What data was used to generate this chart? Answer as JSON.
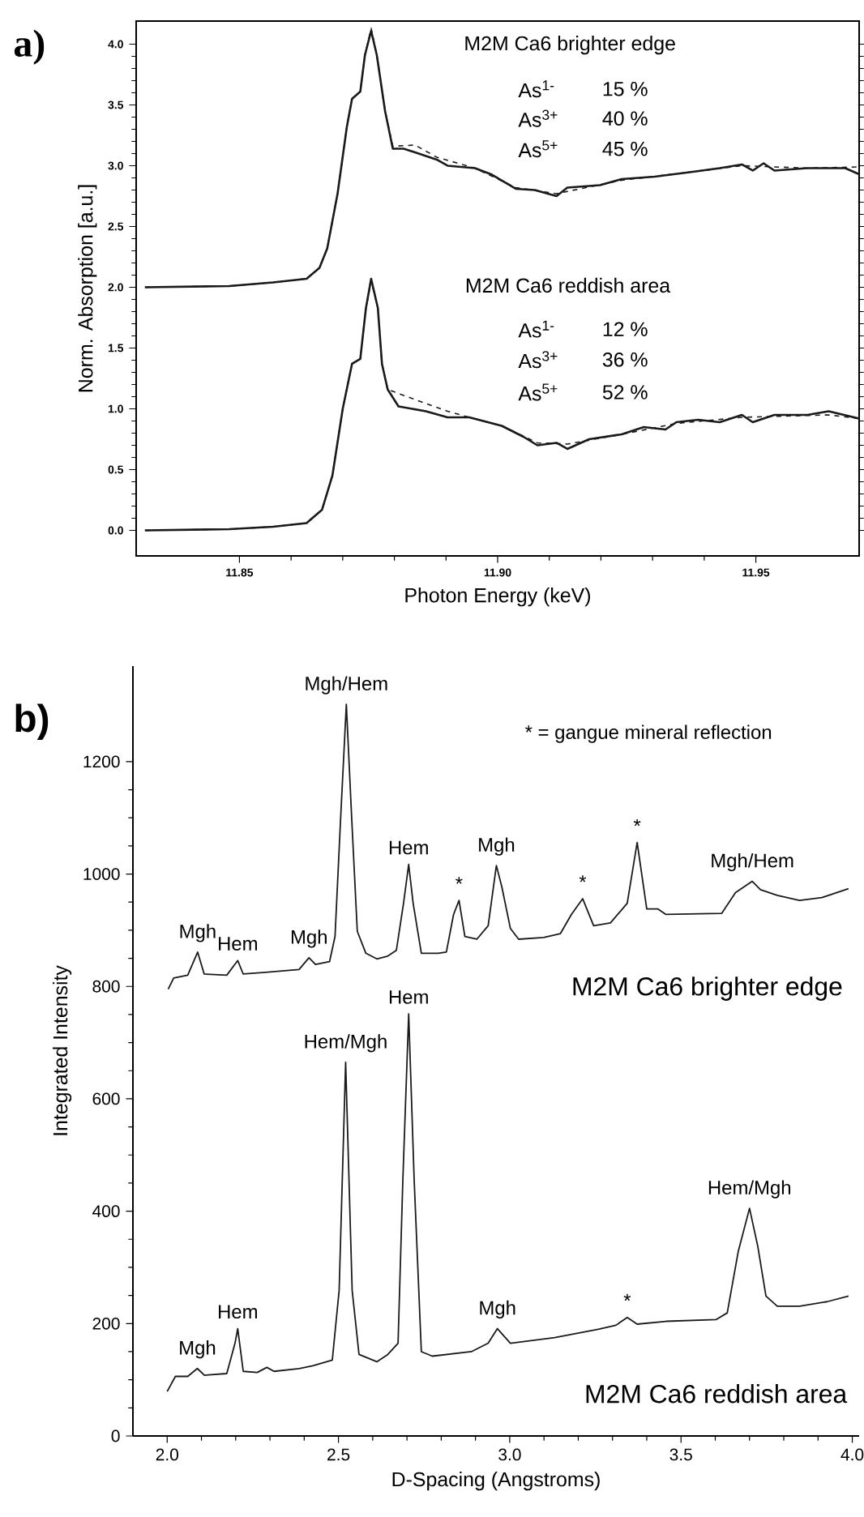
{
  "chart_data": [
    {
      "type": "line",
      "title": "a)",
      "xlabel": "Photon Energy (keV)",
      "ylabel": "Norm. Absorption [a.u.]",
      "xlim": [
        11.83,
        11.97
      ],
      "ylim": [
        -0.21,
        4.19
      ],
      "xticks": [
        {
          "value": 11.85,
          "label": "11.85"
        },
        {
          "value": 11.9,
          "label": "11.90"
        },
        {
          "value": 11.95,
          "label": "11.95"
        }
      ],
      "yticks": [
        {
          "value": 0,
          "label": "0.0"
        },
        {
          "value": 0.5,
          "label": "0.5"
        },
        {
          "value": 1,
          "label": "1.0"
        },
        {
          "value": 1.5,
          "label": "1.5"
        },
        {
          "value": 2,
          "label": "2.0"
        },
        {
          "value": 2.5,
          "label": "2.5"
        },
        {
          "value": 3,
          "label": "3.0"
        },
        {
          "value": 3.5,
          "label": "3.5"
        },
        {
          "value": 4,
          "label": "4.0"
        }
      ],
      "series": [
        {
          "color": "#1a1a1a",
          "line_style": "solid",
          "x": [
            11.8317,
            11.848,
            11.8565,
            11.863,
            11.8655,
            11.867,
            11.869,
            11.8708,
            11.8718,
            11.8734,
            11.8743,
            11.8755,
            11.8766,
            11.8782,
            11.8797,
            11.8818,
            11.884,
            11.8882,
            11.8903,
            11.8956,
            11.8987,
            11.9035,
            11.9072,
            11.9114,
            11.9135,
            11.9198,
            11.924,
            11.9304,
            11.9378,
            11.943,
            11.9473,
            11.9494,
            11.9515,
            11.9536,
            11.9599,
            11.9673,
            11.97
          ],
          "values": [
            2.0,
            2.01,
            2.04,
            2.07,
            2.16,
            2.32,
            2.77,
            3.32,
            3.55,
            3.61,
            3.91,
            4.11,
            3.91,
            3.45,
            3.14,
            3.14,
            3.11,
            3.05,
            3.0,
            2.98,
            2.93,
            2.81,
            2.8,
            2.75,
            2.82,
            2.84,
            2.89,
            2.91,
            2.95,
            2.98,
            3.01,
            2.96,
            3.02,
            2.96,
            2.98,
            2.98,
            2.93
          ]
        },
        {
          "color": "#1a1a1a",
          "line_style": "dashed",
          "x": [
            11.8317,
            11.848,
            11.8565,
            11.863,
            11.8655,
            11.867,
            11.869,
            11.8708,
            11.8718,
            11.8734,
            11.8743,
            11.8755,
            11.8766,
            11.8782,
            11.8797,
            11.884,
            11.8882,
            11.8956,
            11.9035,
            11.9114,
            11.924,
            11.9378,
            11.9473,
            11.9599,
            11.97
          ],
          "values": [
            2.0,
            2.01,
            2.04,
            2.07,
            2.16,
            2.32,
            2.77,
            3.32,
            3.55,
            3.61,
            3.91,
            4.13,
            3.91,
            3.45,
            3.16,
            3.17,
            3.07,
            2.98,
            2.82,
            2.77,
            2.88,
            2.95,
            3.0,
            2.98,
            2.99
          ]
        },
        {
          "color": "#1a1a1a",
          "line_style": "solid",
          "x": [
            11.8317,
            11.848,
            11.8565,
            11.863,
            11.866,
            11.868,
            11.87,
            11.8718,
            11.8734,
            11.8745,
            11.8755,
            11.8768,
            11.8776,
            11.8787,
            11.8808,
            11.8861,
            11.8903,
            11.8945,
            11.9008,
            11.905,
            11.9077,
            11.9114,
            11.9135,
            11.9177,
            11.924,
            11.9283,
            11.9325,
            11.9346,
            11.9388,
            11.943,
            11.9473,
            11.9494,
            11.9536,
            11.96,
            11.9641,
            11.97
          ],
          "values": [
            0,
            0.01,
            0.03,
            0.06,
            0.17,
            0.45,
            1.0,
            1.37,
            1.41,
            1.83,
            2.07,
            1.83,
            1.37,
            1.16,
            1.02,
            0.98,
            0.93,
            0.93,
            0.86,
            0.77,
            0.7,
            0.72,
            0.67,
            0.75,
            0.79,
            0.85,
            0.83,
            0.89,
            0.91,
            0.89,
            0.95,
            0.89,
            0.95,
            0.95,
            0.98,
            0.92
          ]
        },
        {
          "color": "#1a1a1a",
          "line_style": "dashed",
          "x": [
            11.8317,
            11.848,
            11.8565,
            11.863,
            11.866,
            11.868,
            11.87,
            11.8718,
            11.8734,
            11.8745,
            11.8755,
            11.8768,
            11.8776,
            11.8787,
            11.8818,
            11.8903,
            11.8945,
            11.9008,
            11.9077,
            11.9135,
            11.924,
            11.9346,
            11.9473,
            11.9641,
            11.97
          ],
          "values": [
            0,
            0.01,
            0.03,
            0.06,
            0.17,
            0.45,
            1.0,
            1.37,
            1.41,
            1.83,
            2.05,
            1.83,
            1.37,
            1.16,
            1.11,
            0.98,
            0.93,
            0.86,
            0.72,
            0.71,
            0.79,
            0.88,
            0.93,
            0.95,
            0.92
          ]
        }
      ],
      "annotations": [
        "M2M Ca6 brighter edge",
        "As$^{1-}$",
        "15 %",
        "As$^{3+}$",
        "40 %",
        "As$^{5+}$",
        "45 %",
        "M2M Ca6 reddish area",
        "As$^{1-}$",
        "12 %",
        "As$^{3+}$",
        "36 %",
        "As$^{5+}$",
        "52 %"
      ]
    },
    {
      "type": "line",
      "title": "b)",
      "xlabel": "D-Spacing (Angstroms)",
      "ylabel": "Integrated Intensity",
      "xlim": [
        1.9,
        4.02
      ],
      "ylim": [
        0,
        1370
      ],
      "xticks": [
        {
          "value": 2,
          "label": "2.0"
        },
        2.5,
        {
          "value": 3,
          "label": "3.0"
        },
        3.5,
        {
          "value": 4,
          "label": "4.0"
        }
      ],
      "yticks": [
        0,
        200,
        400,
        600,
        800,
        1000,
        1200
      ],
      "series": [
        {
          "color": "#1a1a1a",
          "line_style": "solid",
          "x": [
            2.003,
            2.019,
            2.06,
            2.089,
            2.108,
            2.174,
            2.206,
            2.222,
            2.287,
            2.385,
            2.414,
            2.433,
            2.474,
            2.49,
            2.506,
            2.523,
            2.539,
            2.555,
            2.58,
            2.612,
            2.644,
            2.669,
            2.69,
            2.705,
            2.718,
            2.742,
            2.791,
            2.815,
            2.836,
            2.852,
            2.869,
            2.904,
            2.937,
            2.961,
            2.977,
            3.002,
            3.026,
            3.099,
            3.148,
            3.18,
            3.213,
            3.245,
            3.294,
            3.343,
            3.372,
            3.4,
            3.432,
            3.456,
            3.619,
            3.659,
            3.708,
            3.732,
            3.781,
            3.846,
            3.911,
            3.989
          ],
          "values": [
            795,
            815,
            820,
            861,
            822,
            820,
            846,
            822,
            825,
            830,
            851,
            839,
            844,
            889,
            1095,
            1302,
            1095,
            898,
            859,
            849,
            854,
            864,
            948,
            1017,
            948,
            859,
            859,
            861,
            928,
            953,
            889,
            884,
            908,
            1015,
            977,
            903,
            884,
            887,
            894,
            928,
            956,
            908,
            913,
            948,
            1056,
            938,
            938,
            928,
            930,
            967,
            987,
            972,
            962,
            953,
            958,
            974
          ]
        },
        {
          "color": "#1a1a1a",
          "line_style": "solid",
          "x": [
            2.0,
            2.024,
            2.06,
            2.088,
            2.109,
            2.174,
            2.198,
            2.206,
            2.222,
            2.263,
            2.291,
            2.312,
            2.385,
            2.425,
            2.482,
            2.502,
            2.521,
            2.54,
            2.56,
            2.612,
            2.644,
            2.674,
            2.688,
            2.705,
            2.721,
            2.742,
            2.774,
            2.888,
            2.937,
            2.964,
            3.002,
            3.131,
            3.261,
            3.31,
            3.343,
            3.372,
            3.456,
            3.602,
            3.635,
            3.667,
            3.7,
            3.724,
            3.748,
            3.781,
            3.846,
            3.927,
            3.989
          ],
          "values": [
            79,
            106,
            106,
            120,
            108,
            111,
            165,
            191,
            115,
            113,
            122,
            115,
            120,
            125,
            135,
            259,
            665,
            259,
            145,
            132,
            145,
            165,
            456,
            751,
            456,
            150,
            142,
            150,
            165,
            191,
            165,
            175,
            190,
            197,
            211,
            199,
            204,
            207,
            219,
            328,
            405,
            338,
            249,
            231,
            231,
            239,
            249
          ]
        }
      ],
      "annotations": [
        {
          "text": "Mgh",
          "x": 2.089,
          "y": 861
        },
        {
          "text": "Hem",
          "x": 2.206,
          "y": 846
        },
        {
          "text": "Mgh",
          "x": 2.414,
          "y": 851
        },
        {
          "text": "Mgh/Hem",
          "x": 2.523,
          "y": 1302
        },
        {
          "text": "Hem",
          "x": 2.705,
          "y": 1017
        },
        {
          "text": "*",
          "x": 2.852,
          "y": 953
        },
        {
          "text": "Mgh",
          "x": 2.961,
          "y": 1015
        },
        {
          "text": "*",
          "x": 3.213,
          "y": 956
        },
        {
          "text": "*",
          "x": 3.372,
          "y": 1056
        },
        {
          "text": "Mgh/Hem",
          "x": 3.708,
          "y": 987
        },
        {
          "text": "Mgh",
          "x": 2.088,
          "y": 120
        },
        {
          "text": "Hem",
          "x": 2.206,
          "y": 191
        },
        {
          "text": "Hem/Mgh",
          "x": 2.521,
          "y": 665
        },
        {
          "text": "Hem",
          "x": 2.705,
          "y": 751
        },
        {
          "text": "Mgh",
          "x": 2.964,
          "y": 191
        },
        {
          "text": "*",
          "x": 3.343,
          "y": 211
        },
        {
          "text": "Hem/Mgh",
          "x": 3.7,
          "y": 405
        },
        "* = gangue mineral reflection",
        "M2M Ca6 brighter edge",
        "M2M Ca6 reddish area"
      ]
    }
  ]
}
